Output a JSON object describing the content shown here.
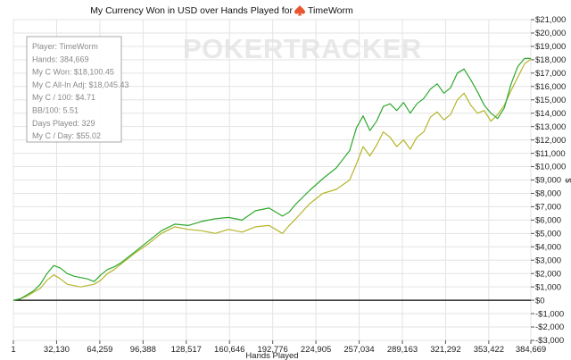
{
  "title_prefix": "My Currency Won in USD over Hands Played for",
  "player_name": "TimeWorm",
  "watermark": "POKERTRACKER",
  "info_box": [
    "Player: TimeWorm",
    "Hands: 384,669",
    "My C Won: $18,100.45",
    "My C All-In Adj: $18,045.43",
    "My C / 100: $4.71",
    "BB/100: 5.51",
    "Days Played: 329",
    "My C / Day: $55.02"
  ],
  "colors": {
    "won": "#2ea82e",
    "allin": "#b5b52a",
    "zero_line": "#000000",
    "grid": "#e3e3e3",
    "icon": "#e8552e"
  },
  "chart_data": {
    "type": "line",
    "title": "My Currency Won in USD over Hands Played for TimeWorm",
    "xlabel": "Hands Played",
    "ylabel": "$",
    "xlim": [
      1,
      384669
    ],
    "ylim": [
      -3000,
      21000
    ],
    "x_ticks": [
      1,
      32130,
      64259,
      96388,
      128517,
      160646,
      192776,
      224905,
      257034,
      289163,
      321292,
      353422,
      384669
    ],
    "x_tick_labels": [
      "1",
      "32,130",
      "64,259",
      "96,388",
      "128,517",
      "160,646",
      "192,776",
      "224,905",
      "257,034",
      "289,163",
      "321,292",
      "353,422",
      "384,669"
    ],
    "y_ticks": [
      -3000,
      -2000,
      -1000,
      0,
      1000,
      2000,
      3000,
      4000,
      5000,
      6000,
      7000,
      8000,
      9000,
      10000,
      11000,
      12000,
      13000,
      14000,
      15000,
      16000,
      17000,
      18000,
      19000,
      20000,
      21000
    ],
    "y_tick_labels": [
      "-$3,000",
      "-$2,000",
      "-$1,000",
      "$0",
      "$1,000",
      "$2,000",
      "$3,000",
      "$4,000",
      "$5,000",
      "$6,000",
      "$7,000",
      "$8,000",
      "$9,000",
      "$10,000",
      "$11,000",
      "$12,000",
      "$13,000",
      "$14,000",
      "$15,000",
      "$16,000",
      "$17,000",
      "$18,000",
      "$19,000",
      "$20,000",
      "$21,000"
    ],
    "grid": true,
    "series": [
      {
        "x": [
          1,
          5000,
          10000,
          15000,
          20000,
          25000,
          30000,
          35000,
          40000,
          45000,
          50000,
          55000,
          60000,
          65000,
          70000,
          75000,
          80000,
          90000,
          100000,
          110000,
          120000,
          130000,
          140000,
          150000,
          160000,
          170000,
          180000,
          190000,
          200000,
          205000,
          210000,
          220000,
          230000,
          240000,
          250000,
          255000,
          260000,
          265000,
          270000,
          275000,
          280000,
          285000,
          290000,
          295000,
          300000,
          305000,
          310000,
          315000,
          320000,
          325000,
          330000,
          335000,
          340000,
          345000,
          350000,
          355000,
          360000,
          365000,
          370000,
          375000,
          380000,
          384669
        ],
        "y": [
          0,
          100,
          400,
          700,
          1200,
          2000,
          2600,
          2400,
          2000,
          1800,
          1700,
          1600,
          1400,
          1900,
          2300,
          2500,
          2800,
          3600,
          4400,
          5200,
          5700,
          5600,
          5900,
          6100,
          6200,
          6000,
          6700,
          6900,
          6300,
          6600,
          7200,
          8200,
          9100,
          9900,
          11200,
          12900,
          13800,
          12700,
          13400,
          14500,
          14700,
          14200,
          14800,
          14000,
          14700,
          15100,
          15800,
          16200,
          15500,
          15900,
          17000,
          17300,
          16500,
          15600,
          14600,
          14000,
          13600,
          14400,
          16200,
          17500,
          18100,
          18100
        ]
      },
      {
        "x": [
          1,
          5000,
          10000,
          15000,
          20000,
          25000,
          30000,
          35000,
          40000,
          45000,
          50000,
          55000,
          60000,
          65000,
          70000,
          75000,
          80000,
          90000,
          100000,
          110000,
          120000,
          130000,
          140000,
          150000,
          160000,
          170000,
          180000,
          190000,
          200000,
          205000,
          210000,
          220000,
          230000,
          240000,
          250000,
          255000,
          260000,
          265000,
          270000,
          275000,
          280000,
          285000,
          290000,
          295000,
          300000,
          305000,
          310000,
          315000,
          320000,
          325000,
          330000,
          335000,
          340000,
          345000,
          350000,
          355000,
          360000,
          365000,
          370000,
          375000,
          380000,
          384669
        ],
        "y": [
          0,
          100,
          300,
          600,
          900,
          1500,
          1900,
          1600,
          1200,
          1100,
          1000,
          1100,
          1200,
          1500,
          2000,
          2300,
          2700,
          3500,
          4200,
          5000,
          5500,
          5300,
          5200,
          5000,
          5300,
          5100,
          5500,
          5600,
          5000,
          5600,
          6100,
          7200,
          8000,
          8300,
          9000,
          10200,
          11500,
          10800,
          11600,
          12600,
          12200,
          11500,
          12000,
          11300,
          12200,
          12600,
          13700,
          14100,
          13500,
          13900,
          15000,
          15500,
          14600,
          14000,
          14200,
          13400,
          13900,
          14600,
          15700,
          16700,
          17700,
          18045
        ]
      }
    ]
  }
}
